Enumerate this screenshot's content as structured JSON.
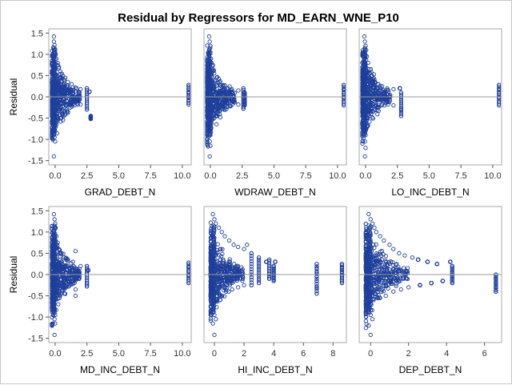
{
  "title": "Residual by Regressors for MD_EARN_WNE_P10",
  "colors": {
    "marker": "#1f3f9a",
    "reference_line": "#999999",
    "panel_border": "#a9a9a9",
    "background": "#ffffff"
  },
  "chart_data": [
    {
      "type": "scatter",
      "xlabel": "GRAD_DEBT_N",
      "ylabel": "Residual",
      "xlim": [
        -0.5,
        10.7
      ],
      "ylim": [
        -1.6,
        1.6
      ],
      "xticks": [
        0.0,
        2.5,
        5.0,
        7.5,
        10.0
      ],
      "xtick_labels": [
        "0.0",
        "2.5",
        "5.0",
        "7.5",
        "10.0"
      ],
      "yticks": [
        -1.5,
        -1.0,
        -0.5,
        0.0,
        0.5,
        1.0,
        1.5
      ],
      "ytick_labels": [
        "-1.5",
        "-1.0",
        "-0.5",
        "0.0",
        "0.5",
        "1.0",
        "1.5"
      ],
      "reference_y": 0,
      "points": [
        [
          -0.1,
          1.42
        ],
        [
          -0.1,
          1.3
        ],
        [
          -0.05,
          1.22
        ],
        [
          0.0,
          1.1
        ],
        [
          0.05,
          1.0
        ],
        [
          -0.1,
          0.95
        ],
        [
          0.1,
          0.9
        ],
        [
          0.2,
          0.8
        ],
        [
          0.3,
          0.7
        ],
        [
          0.4,
          0.6
        ],
        [
          0.6,
          0.5
        ],
        [
          0.8,
          0.45
        ],
        [
          1.0,
          0.35
        ],
        [
          1.3,
          0.3
        ],
        [
          1.6,
          0.22
        ],
        [
          2.0,
          0.18
        ],
        [
          2.5,
          0.2
        ],
        [
          2.7,
          0.12
        ],
        [
          -0.1,
          -0.1
        ],
        [
          0.0,
          -0.3
        ],
        [
          0.1,
          -0.45
        ],
        [
          0.2,
          -0.55
        ],
        [
          0.4,
          -0.5
        ],
        [
          0.6,
          -0.4
        ],
        [
          0.9,
          -0.3
        ],
        [
          1.2,
          -0.25
        ],
        [
          1.5,
          -0.2
        ],
        [
          2.0,
          -0.18
        ],
        [
          2.5,
          -0.3
        ],
        [
          2.8,
          -0.45
        ],
        [
          2.8,
          -0.52
        ],
        [
          -0.1,
          -0.8
        ],
        [
          -0.05,
          -0.95
        ],
        [
          0.0,
          -1.05
        ],
        [
          -0.1,
          -1.4
        ],
        [
          0.05,
          -0.7
        ],
        [
          10.5,
          0.28
        ],
        [
          10.5,
          0.2
        ],
        [
          10.5,
          0.1
        ],
        [
          10.5,
          0.0
        ],
        [
          10.5,
          -0.1
        ],
        [
          10.5,
          -0.18
        ]
      ]
    },
    {
      "type": "scatter",
      "xlabel": "WDRAW_DEBT_N",
      "ylabel": "",
      "xlim": [
        -0.5,
        10.7
      ],
      "ylim": [
        -1.6,
        1.6
      ],
      "xticks": [
        0.0,
        2.5,
        5.0,
        7.5,
        10.0
      ],
      "xtick_labels": [
        "0.0",
        "2.5",
        "5.0",
        "7.5",
        "10.0"
      ],
      "yticks": [],
      "ytick_labels": [],
      "reference_y": 0,
      "points": [
        [
          -0.1,
          1.42
        ],
        [
          -0.05,
          1.3
        ],
        [
          0.0,
          1.2
        ],
        [
          0.0,
          1.05
        ],
        [
          0.05,
          0.9
        ],
        [
          0.1,
          0.8
        ],
        [
          0.2,
          0.65
        ],
        [
          0.3,
          0.55
        ],
        [
          0.5,
          0.45
        ],
        [
          0.7,
          0.35
        ],
        [
          1.0,
          0.28
        ],
        [
          1.3,
          0.2
        ],
        [
          1.7,
          0.18
        ],
        [
          2.2,
          0.15
        ],
        [
          2.6,
          0.2
        ],
        [
          2.7,
          0.1
        ],
        [
          -0.1,
          -0.15
        ],
        [
          0.0,
          -0.3
        ],
        [
          0.1,
          -0.5
        ],
        [
          0.3,
          -0.4
        ],
        [
          0.6,
          -0.3
        ],
        [
          1.0,
          -0.22
        ],
        [
          1.5,
          -0.2
        ],
        [
          2.2,
          -0.18
        ],
        [
          2.6,
          -0.28
        ],
        [
          2.7,
          -0.2
        ],
        [
          -0.1,
          -0.8
        ],
        [
          0.0,
          -0.9
        ],
        [
          -0.05,
          -1.05
        ],
        [
          0.0,
          -1.15
        ],
        [
          -0.05,
          -1.4
        ],
        [
          10.5,
          0.28
        ],
        [
          10.5,
          0.18
        ],
        [
          10.5,
          0.08
        ],
        [
          10.5,
          -0.02
        ],
        [
          10.5,
          -0.12
        ],
        [
          10.5,
          -0.2
        ]
      ]
    },
    {
      "type": "scatter",
      "xlabel": "LO_INC_DEBT_N",
      "ylabel": "",
      "xlim": [
        -0.5,
        10.7
      ],
      "ylim": [
        -1.6,
        1.6
      ],
      "xticks": [
        0.0,
        2.5,
        5.0,
        7.5,
        10.0
      ],
      "xtick_labels": [
        "0.0",
        "2.5",
        "5.0",
        "7.5",
        "10.0"
      ],
      "yticks": [],
      "ytick_labels": [],
      "reference_y": 0,
      "points": [
        [
          -0.1,
          1.42
        ],
        [
          -0.05,
          1.3
        ],
        [
          0.0,
          1.2
        ],
        [
          0.05,
          1.1
        ],
        [
          0.1,
          0.95
        ],
        [
          0.2,
          0.8
        ],
        [
          0.3,
          0.65
        ],
        [
          0.5,
          0.5
        ],
        [
          0.7,
          0.4
        ],
        [
          1.0,
          0.3
        ],
        [
          1.3,
          0.25
        ],
        [
          1.7,
          0.2
        ],
        [
          2.2,
          0.18
        ],
        [
          2.7,
          0.2
        ],
        [
          2.8,
          0.1
        ],
        [
          -0.1,
          -0.2
        ],
        [
          0.0,
          -0.35
        ],
        [
          0.15,
          -0.5
        ],
        [
          0.3,
          -0.45
        ],
        [
          0.6,
          -0.35
        ],
        [
          1.0,
          -0.25
        ],
        [
          1.5,
          -0.2
        ],
        [
          2.2,
          -0.2
        ],
        [
          2.8,
          -0.3
        ],
        [
          2.8,
          -0.45
        ],
        [
          -0.1,
          -0.8
        ],
        [
          0.0,
          -0.9
        ],
        [
          -0.05,
          -1.05
        ],
        [
          0.0,
          -1.2
        ],
        [
          -0.05,
          -1.4
        ],
        [
          10.5,
          0.28
        ],
        [
          10.5,
          0.18
        ],
        [
          10.5,
          0.08
        ],
        [
          10.5,
          -0.02
        ],
        [
          10.5,
          -0.12
        ],
        [
          10.5,
          -0.2
        ]
      ]
    },
    {
      "type": "scatter",
      "xlabel": "MD_INC_DEBT_N",
      "ylabel": "Residual",
      "xlim": [
        -0.5,
        10.7
      ],
      "ylim": [
        -1.6,
        1.6
      ],
      "xticks": [
        0.0,
        2.5,
        5.0,
        7.5,
        10.0
      ],
      "xtick_labels": [
        "0.0",
        "2.5",
        "5.0",
        "7.5",
        "10.0"
      ],
      "yticks": [
        -1.5,
        -1.0,
        -0.5,
        0.0,
        0.5,
        1.0,
        1.5
      ],
      "ytick_labels": [
        "-1.5",
        "-1.0",
        "-0.5",
        "0.0",
        "0.5",
        "1.0",
        "1.5"
      ],
      "reference_y": 0,
      "points": [
        [
          -0.1,
          1.42
        ],
        [
          -0.05,
          1.3
        ],
        [
          0.0,
          1.2
        ],
        [
          0.05,
          1.1
        ],
        [
          0.1,
          0.9
        ],
        [
          0.2,
          0.75
        ],
        [
          0.3,
          0.6
        ],
        [
          0.5,
          0.5
        ],
        [
          0.7,
          0.4
        ],
        [
          1.0,
          0.35
        ],
        [
          1.4,
          0.3
        ],
        [
          1.6,
          0.55
        ],
        [
          2.0,
          0.2
        ],
        [
          2.5,
          0.2
        ],
        [
          2.6,
          0.1
        ],
        [
          -0.1,
          -0.15
        ],
        [
          0.0,
          -0.35
        ],
        [
          0.15,
          -0.5
        ],
        [
          0.3,
          -0.4
        ],
        [
          0.7,
          -0.3
        ],
        [
          1.0,
          -0.22
        ],
        [
          1.6,
          -0.35
        ],
        [
          1.6,
          -0.5
        ],
        [
          2.5,
          -0.28
        ],
        [
          2.5,
          -0.2
        ],
        [
          -0.1,
          -0.8
        ],
        [
          0.0,
          -0.95
        ],
        [
          -0.05,
          -1.05
        ],
        [
          0.0,
          -1.15
        ],
        [
          -0.05,
          -1.42
        ],
        [
          10.5,
          0.28
        ],
        [
          10.5,
          0.18
        ],
        [
          10.5,
          0.08
        ],
        [
          10.5,
          -0.02
        ],
        [
          10.5,
          -0.12
        ],
        [
          10.5,
          -0.2
        ]
      ]
    },
    {
      "type": "scatter",
      "xlabel": "HI_INC_DEBT_N",
      "ylabel": "",
      "xlim": [
        -0.7,
        8.9
      ],
      "ylim": [
        -1.6,
        1.6
      ],
      "xticks": [
        0,
        2,
        4,
        6,
        8
      ],
      "xtick_labels": [
        "0",
        "2",
        "4",
        "6",
        "8"
      ],
      "yticks": [],
      "ytick_labels": [],
      "reference_y": 0,
      "points": [
        [
          -0.1,
          1.42
        ],
        [
          0.0,
          1.3
        ],
        [
          0.1,
          1.2
        ],
        [
          0.3,
          1.1
        ],
        [
          0.5,
          1.0
        ],
        [
          0.7,
          0.9
        ],
        [
          1.0,
          0.8
        ],
        [
          1.3,
          0.7
        ],
        [
          1.6,
          0.65
        ],
        [
          2.0,
          0.6
        ],
        [
          2.2,
          0.7
        ],
        [
          2.5,
          0.5
        ],
        [
          3.0,
          0.4
        ],
        [
          3.5,
          0.3
        ],
        [
          3.7,
          0.35
        ],
        [
          4.0,
          0.2
        ],
        [
          4.1,
          0.3
        ],
        [
          -0.1,
          -0.2
        ],
        [
          0.2,
          -0.4
        ],
        [
          0.5,
          -0.5
        ],
        [
          0.8,
          -0.4
        ],
        [
          1.2,
          -0.35
        ],
        [
          1.6,
          -0.3
        ],
        [
          2.0,
          -0.25
        ],
        [
          2.5,
          -0.25
        ],
        [
          3.0,
          -0.2
        ],
        [
          3.7,
          -0.1
        ],
        [
          4.0,
          -0.15
        ],
        [
          -0.1,
          -0.8
        ],
        [
          0.0,
          -0.95
        ],
        [
          0.1,
          -1.05
        ],
        [
          -0.1,
          -1.15
        ],
        [
          0.0,
          -1.42
        ],
        [
          6.9,
          0.25
        ],
        [
          6.9,
          0.15
        ],
        [
          6.9,
          0.05
        ],
        [
          6.9,
          -0.05
        ],
        [
          6.9,
          -0.15
        ],
        [
          6.9,
          -0.3
        ],
        [
          6.9,
          -0.45
        ],
        [
          8.6,
          0.25
        ],
        [
          8.6,
          0.15
        ],
        [
          8.6,
          0.05
        ],
        [
          8.6,
          -0.05
        ],
        [
          8.6,
          -0.12
        ],
        [
          8.6,
          -0.2
        ]
      ]
    },
    {
      "type": "scatter",
      "xlabel": "DEP_DEBT_N",
      "ylabel": "",
      "xlim": [
        -0.6,
        6.9
      ],
      "ylim": [
        -1.6,
        1.6
      ],
      "xticks": [
        0,
        2,
        4,
        6
      ],
      "xtick_labels": [
        "0",
        "2",
        "4",
        "6"
      ],
      "yticks": [],
      "ytick_labels": [],
      "reference_y": 0,
      "points": [
        [
          -0.1,
          1.42
        ],
        [
          0.0,
          1.3
        ],
        [
          0.1,
          1.2
        ],
        [
          0.2,
          1.1
        ],
        [
          0.3,
          1.0
        ],
        [
          0.5,
          0.9
        ],
        [
          0.7,
          0.8
        ],
        [
          1.0,
          0.7
        ],
        [
          1.2,
          0.6
        ],
        [
          1.5,
          0.5
        ],
        [
          1.8,
          0.45
        ],
        [
          2.2,
          0.4
        ],
        [
          2.5,
          0.35
        ],
        [
          3.0,
          0.3
        ],
        [
          3.5,
          0.25
        ],
        [
          4.2,
          0.3
        ],
        [
          4.3,
          0.2
        ],
        [
          -0.1,
          -0.2
        ],
        [
          0.2,
          -0.45
        ],
        [
          0.5,
          -0.55
        ],
        [
          0.8,
          -0.5
        ],
        [
          1.2,
          -0.4
        ],
        [
          1.6,
          -0.35
        ],
        [
          2.0,
          -0.3
        ],
        [
          2.6,
          -0.25
        ],
        [
          3.2,
          -0.2
        ],
        [
          3.8,
          -0.15
        ],
        [
          4.3,
          -0.2
        ],
        [
          -0.1,
          -0.8
        ],
        [
          0.0,
          -0.95
        ],
        [
          0.1,
          -1.05
        ],
        [
          -0.1,
          -1.2
        ],
        [
          0.0,
          -1.42
        ],
        [
          6.6,
          0.0
        ],
        [
          6.6,
          -0.1
        ],
        [
          6.6,
          -0.2
        ],
        [
          6.6,
          -0.3
        ],
        [
          6.6,
          -0.4
        ]
      ]
    }
  ]
}
